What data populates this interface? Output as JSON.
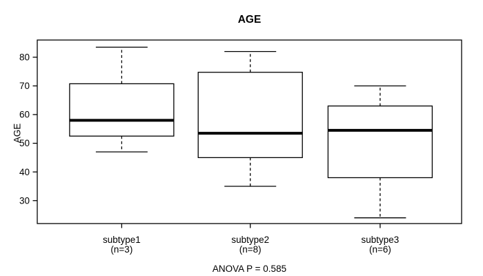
{
  "page": {
    "background_color": "#ffffff",
    "line_color": "#000000"
  },
  "chart_data": {
    "type": "boxplot",
    "title": "AGE",
    "ylabel": "AGE",
    "xlabel": "",
    "footer_annotation": "ANOVA P = 0.585",
    "ylim": [
      22,
      86
    ],
    "yticks": [
      30,
      40,
      50,
      60,
      70,
      80
    ],
    "grid": false,
    "legend": "none",
    "categories": [
      "subtype1",
      "subtype2",
      "subtype3"
    ],
    "category_sublabels": [
      "(n=3)",
      "(n=8)",
      "(n=6)"
    ],
    "series": [
      {
        "name": "subtype1",
        "n": 3,
        "whisker_low": 47,
        "q1": 52.5,
        "median": 58,
        "q3": 70.75,
        "whisker_high": 83.5
      },
      {
        "name": "subtype2",
        "n": 8,
        "whisker_low": 35,
        "q1": 45,
        "median": 53.5,
        "q3": 74.75,
        "whisker_high": 82
      },
      {
        "name": "subtype3",
        "n": 6,
        "whisker_low": 24,
        "q1": 38,
        "median": 54.5,
        "q3": 63,
        "whisker_high": 70
      }
    ]
  }
}
